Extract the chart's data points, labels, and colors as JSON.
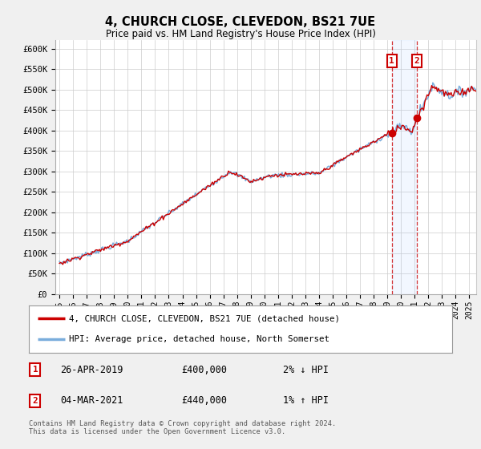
{
  "title": "4, CHURCH CLOSE, CLEVEDON, BS21 7UE",
  "subtitle": "Price paid vs. HM Land Registry's House Price Index (HPI)",
  "ylabel_ticks": [
    "£0",
    "£50K",
    "£100K",
    "£150K",
    "£200K",
    "£250K",
    "£300K",
    "£350K",
    "£400K",
    "£450K",
    "£500K",
    "£550K",
    "£600K"
  ],
  "ytick_values": [
    0,
    50000,
    100000,
    150000,
    200000,
    250000,
    300000,
    350000,
    400000,
    450000,
    500000,
    550000,
    600000
  ],
  "ylim": [
    0,
    620000
  ],
  "xlim_start": 1994.7,
  "xlim_end": 2025.5,
  "xticks": [
    1995,
    1996,
    1997,
    1998,
    1999,
    2000,
    2001,
    2002,
    2003,
    2004,
    2005,
    2006,
    2007,
    2008,
    2009,
    2010,
    2011,
    2012,
    2013,
    2014,
    2015,
    2016,
    2017,
    2018,
    2019,
    2020,
    2021,
    2022,
    2023,
    2024,
    2025
  ],
  "hpi_color": "#7aaddc",
  "price_color": "#cc0000",
  "marker1_date": 2019.32,
  "marker2_date": 2021.17,
  "marker1_price": 400000,
  "marker2_price": 440000,
  "transaction1": {
    "label": "1",
    "date": "26-APR-2019",
    "price": "£400,000",
    "hpi_note": "2% ↓ HPI"
  },
  "transaction2": {
    "label": "2",
    "date": "04-MAR-2021",
    "price": "£440,000",
    "hpi_note": "1% ↑ HPI"
  },
  "legend1": "4, CHURCH CLOSE, CLEVEDON, BS21 7UE (detached house)",
  "legend2": "HPI: Average price, detached house, North Somerset",
  "footnote": "Contains HM Land Registry data © Crown copyright and database right 2024.\nThis data is licensed under the Open Government Licence v3.0.",
  "background_color": "#f0f0f0",
  "plot_bg_color": "#ffffff"
}
